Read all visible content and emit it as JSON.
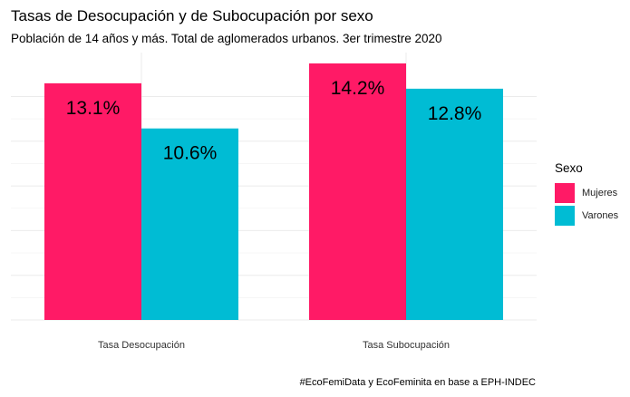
{
  "chart_data": {
    "type": "bar",
    "title": "Tasas de Desocupación y de Subocupación por sexo",
    "subtitle": "Población de 14 años y más. Total de aglomerados urbanos. 3er trimestre 2020",
    "caption": "#EcoFemiData y EcoFeminita en base a EPH-INDEC",
    "categories": [
      "Tasa Desocupación",
      "Tasa Subocupación"
    ],
    "series": [
      {
        "name": "Mujeres",
        "values": [
          13.1,
          14.2
        ],
        "labels": [
          "13.1%",
          "14.2%"
        ],
        "color": "#ff1a66"
      },
      {
        "name": "Varones",
        "values": [
          10.6,
          12.8
        ],
        "labels": [
          "10.6%",
          "12.8%"
        ],
        "color": "#00bcd4"
      }
    ],
    "legend_title": "Sexo",
    "legend_position": "right",
    "ylim": [
      0,
      14.8
    ],
    "grid": true,
    "xlabel": "",
    "ylabel": ""
  }
}
